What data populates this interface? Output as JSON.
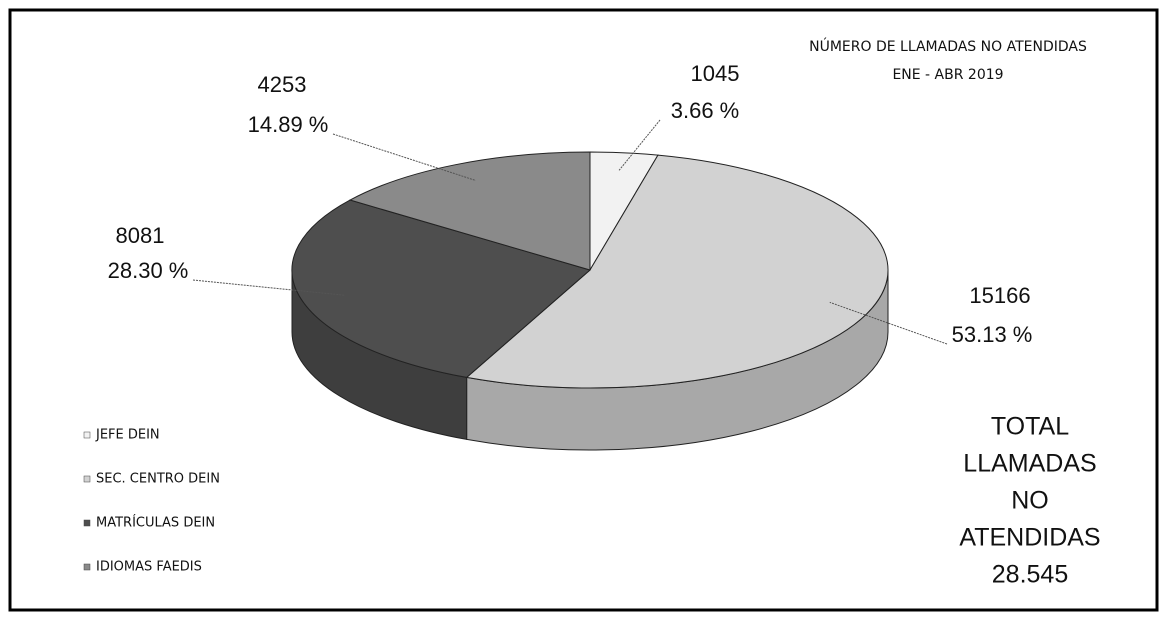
{
  "chart_data": {
    "type": "pie3d",
    "title": "NÚMERO DE LLAMADAS NO ATENDIDAS",
    "subtitle": "ENE - ABR 2019",
    "categories": [
      "JEFE DEIN",
      "SEC. CENTRO DEIN",
      "MATRÍCULAS DEIN",
      "IDIOMAS FAEDIS"
    ],
    "values": [
      1045,
      15166,
      8081,
      4253
    ],
    "percentages": [
      3.66,
      53.13,
      28.3,
      14.89
    ],
    "percentage_labels": [
      "3.66 %",
      "53.13 %",
      "28.30 %",
      "14.89 %"
    ],
    "colors": [
      "#f2f2f2",
      "#d2d2d2",
      "#4e4e4e",
      "#8a8a8a"
    ],
    "annotation": [
      "TOTAL",
      "LLAMADAS",
      "NO",
      "ATENDIDAS",
      "28.545"
    ]
  }
}
